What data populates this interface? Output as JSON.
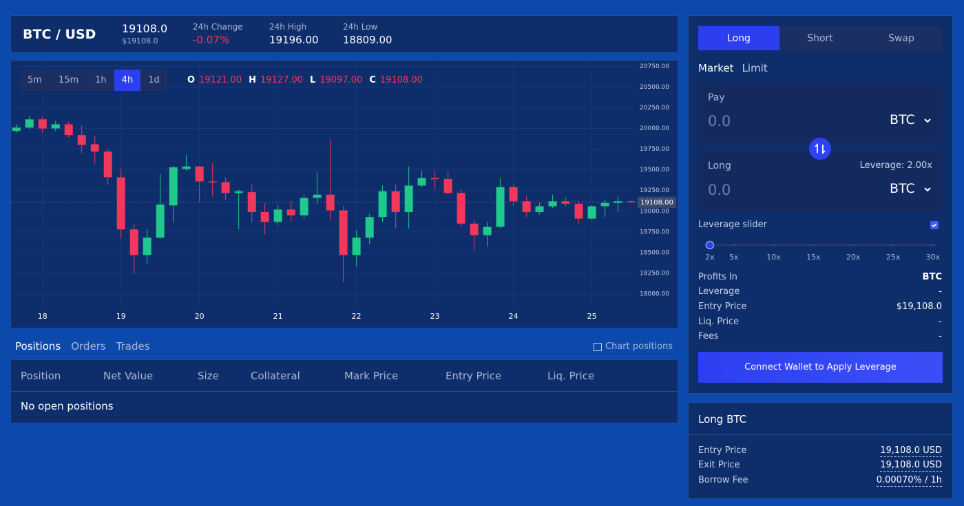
{
  "header": {
    "pair": "BTC / USD",
    "price": "19108.0",
    "price_usd": "$19108.0",
    "stats": [
      {
        "label": "24h Change",
        "value": "-0.07%"
      },
      {
        "label": "24h High",
        "value": "19196.00"
      },
      {
        "label": "24h Low",
        "value": "18809.00"
      }
    ]
  },
  "timeframes": [
    "5m",
    "15m",
    "1h",
    "4h",
    "1d"
  ],
  "selected_timeframe": "4h",
  "ohlc": [
    {
      "key": "O",
      "value": "19121.00"
    },
    {
      "key": "H",
      "value": "19127.00"
    },
    {
      "key": "L",
      "value": "19097.00"
    },
    {
      "key": "C",
      "value": "19108.00"
    }
  ],
  "chart_data": {
    "type": "candlestick",
    "up_color": "#1fc98b",
    "down_color": "#f2385a",
    "grid": true,
    "x": [
      17.667,
      17.833,
      18,
      18.167,
      18.333,
      18.5,
      18.667,
      18.833,
      19,
      19.167,
      19.333,
      19.5,
      19.667,
      19.833,
      20,
      20.167,
      20.333,
      20.5,
      20.667,
      20.833,
      21,
      21.167,
      21.333,
      21.5,
      21.667,
      21.833,
      22,
      22.167,
      22.333,
      22.5,
      22.667,
      22.833,
      23,
      23.167,
      23.333,
      23.5,
      23.667,
      23.833,
      24,
      24.167,
      24.333,
      24.5,
      24.667,
      24.833,
      25,
      25.167,
      25.333,
      25.5
    ],
    "open": [
      19970,
      20010,
      20110,
      20000,
      20050,
      19920,
      19810,
      19720,
      19410,
      18780,
      18470,
      18680,
      19070,
      19510,
      19540,
      19360,
      19350,
      19220,
      19230,
      18990,
      18870,
      19020,
      18950,
      19160,
      19200,
      19010,
      18470,
      18680,
      18930,
      19240,
      18990,
      19310,
      19400,
      19390,
      19220,
      18850,
      18710,
      18810,
      19290,
      19120,
      18990,
      19060,
      19120,
      19090,
      18910,
      19060,
      19100,
      19121
    ],
    "high": [
      20050,
      20150,
      20140,
      20090,
      20080,
      20040,
      19910,
      19750,
      19510,
      18850,
      18780,
      19450,
      19550,
      19680,
      19550,
      19580,
      19410,
      19260,
      19320,
      19100,
      19070,
      19120,
      19200,
      19470,
      19870,
      19060,
      18770,
      18970,
      19310,
      19320,
      19540,
      19490,
      19490,
      19490,
      19260,
      18890,
      18870,
      19400,
      19320,
      19180,
      19100,
      19200,
      19170,
      19120,
      19070,
      19140,
      19180,
      19127
    ],
    "low": [
      19950,
      19990,
      19950,
      19970,
      19890,
      19700,
      19570,
      19320,
      18670,
      18240,
      18370,
      18670,
      18870,
      19490,
      19110,
      19180,
      19140,
      18780,
      18860,
      18720,
      18830,
      18870,
      18910,
      19090,
      18890,
      18140,
      18330,
      18600,
      18870,
      18790,
      18790,
      19290,
      19260,
      19200,
      18810,
      18520,
      18570,
      18790,
      19060,
      18930,
      18960,
      19040,
      19060,
      18850,
      18890,
      18930,
      18990,
      19097
    ],
    "close": [
      20010,
      20110,
      20000,
      20050,
      19920,
      19800,
      19720,
      19410,
      18780,
      18470,
      18680,
      19080,
      19530,
      19540,
      19360,
      19350,
      19220,
      19240,
      18990,
      18870,
      19020,
      18950,
      19160,
      19200,
      19010,
      18470,
      18680,
      18930,
      19240,
      18990,
      19310,
      19400,
      19390,
      19220,
      18850,
      18710,
      18810,
      19290,
      19120,
      18990,
      19060,
      19120,
      19090,
      18910,
      19060,
      19100,
      19120,
      19108
    ],
    "xlim": [
      17.59,
      25.53
    ],
    "xticks": [
      18,
      19,
      20,
      21,
      22,
      23,
      24,
      25
    ],
    "ylim": [
      17850,
      20820
    ],
    "yticks": [
      {
        "value": 18000,
        "label": "18000.00"
      },
      {
        "value": 18250,
        "label": "18250.00"
      },
      {
        "value": 18500,
        "label": "18500.00"
      },
      {
        "value": 18750,
        "label": "18750.00"
      },
      {
        "value": 19000,
        "label": "19000.00"
      },
      {
        "value": 19250,
        "label": "19250.00"
      },
      {
        "value": 19500,
        "label": "19500.00"
      },
      {
        "value": 19750,
        "label": "19750.00"
      },
      {
        "value": 20000,
        "label": "20000.00"
      },
      {
        "value": 20250,
        "label": "20250.00"
      },
      {
        "value": 20500,
        "label": "20500.00"
      },
      {
        "value": 20750,
        "label": "20750.00"
      }
    ],
    "last_price": {
      "value": 19108,
      "label": "19108.00"
    }
  },
  "tabs": [
    "Positions",
    "Orders",
    "Trades"
  ],
  "chart_positions": "Chart positions",
  "table": {
    "columns": [
      "Position",
      "Net Value",
      "Size",
      "Collateral",
      "Mark Price",
      "Entry Price",
      "Liq. Price"
    ],
    "empty": "No open positions"
  },
  "trade": {
    "modes": [
      "Long",
      "Short",
      "Swap"
    ],
    "order_types": [
      "Market",
      "Limit"
    ],
    "pay": {
      "label": "Pay",
      "amount": "0.0",
      "token": "BTC"
    },
    "receive": {
      "label": "Long",
      "leverage": "Leverage: 2.00x",
      "amount": "0.0",
      "token": "BTC"
    },
    "leverage_slider": {
      "label": "Leverage slider",
      "value": 2,
      "marks": [
        {
          "value": 2,
          "label": "2x"
        },
        {
          "value": 5,
          "label": "5x"
        },
        {
          "value": 10,
          "label": "10x"
        },
        {
          "value": 15,
          "label": "15x"
        },
        {
          "value": 20,
          "label": "20x"
        },
        {
          "value": 25,
          "label": "25x"
        },
        {
          "value": 30,
          "label": "30x"
        }
      ]
    },
    "info": [
      [
        "Profits In",
        "BTC"
      ],
      [
        "Leverage",
        "-"
      ],
      [
        "Entry Price",
        "$19,108.0"
      ],
      [
        "Liq. Price",
        "-"
      ],
      [
        "Fees",
        "-"
      ]
    ],
    "button": "Connect Wallet to Apply Leverage"
  },
  "summary": {
    "title": "Long BTC",
    "rows": [
      [
        "Entry Price",
        "19,108.0 USD"
      ],
      [
        "Exit Price",
        "19,108.0 USD"
      ],
      [
        "Borrow Fee",
        "0.00070% / 1h"
      ]
    ]
  }
}
